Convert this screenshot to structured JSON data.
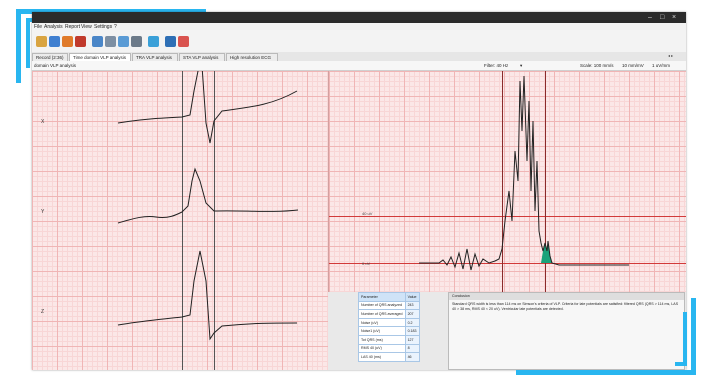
{
  "window": {
    "title": ""
  },
  "menu": [
    "File",
    "Analysis",
    "Report",
    "View",
    "Settings",
    "?"
  ],
  "toolbar": {
    "icons": [
      "open-icon",
      "save-icon",
      "print-icon",
      "ecg-icon",
      "zoom-icon",
      "tools-icon",
      "chart-icon",
      "lead-icon",
      "settings-icon",
      "export-icon",
      "info-icon"
    ]
  },
  "tabs": [
    {
      "label": "Record (2:36)"
    },
    {
      "label": "Time domain VLP analysis"
    },
    {
      "label": "TRA VLP analysis"
    },
    {
      "label": "STA VLP analysis"
    },
    {
      "label": "High resolution ECG"
    }
  ],
  "section": {
    "title": "domain VLP analysis",
    "filter": "Filter: 40 Hz",
    "scale": "Scale: 100 mm/s",
    "zoom": "10 mm/mV",
    "amp": "1 uV/mm"
  },
  "leads": [
    "X",
    "Y",
    "Z"
  ],
  "chart_labels": {
    "level1": "40 uV",
    "level2": "0 uV"
  },
  "params": {
    "header": {
      "name": "Parameter",
      "value": "Value"
    },
    "rows": [
      {
        "name": "Number of QRS analyzed",
        "value": "243"
      },
      {
        "name": "Number of QRS averaged",
        "value": "207"
      },
      {
        "name": "Noise (uV)",
        "value": "0.2"
      },
      {
        "name": "Noise1 (uV)",
        "value": "0.183"
      },
      {
        "name": "Tot QRS (ms)",
        "value": "127"
      },
      {
        "name": "RMS 40 (uV)",
        "value": "8"
      },
      {
        "name": "LAS 40 (ms)",
        "value": "46"
      }
    ]
  },
  "conclusion": {
    "title": "Conclusion",
    "text": "Standard QRS width is less than 114 ms on Simson's criteria of VLP. Criteria for late potentials are satisfied: filtered QRS (QRS > 114 ms, LAS 40 > 38 ms, RMS 40 < 20 uV). Ventricular late potentials are detected."
  },
  "colors": {
    "accent": "#29b6f0",
    "grid": "#f0b5b5",
    "fill": "#1aa37a"
  }
}
